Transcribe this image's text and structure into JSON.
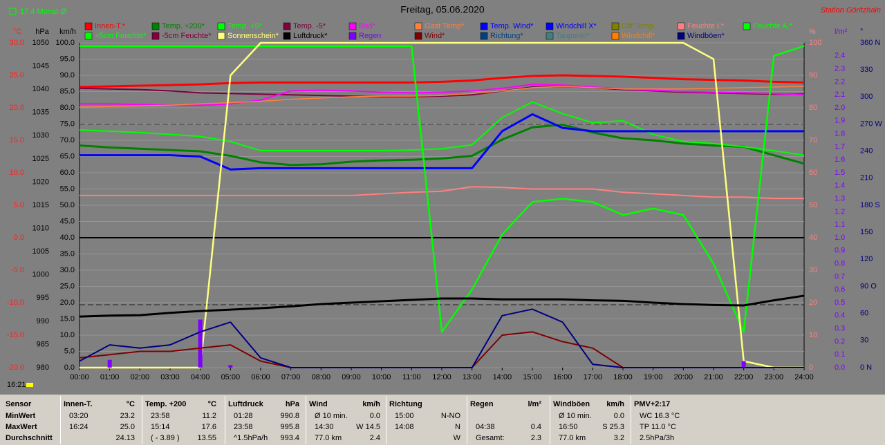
{
  "chart_data": {
    "type": "line",
    "title": "Freitag, 05.06.2020",
    "month_note": "17.4 Monat-Ø",
    "station": "Station Göritzhain",
    "time": "16:21",
    "categories": [
      "00:00",
      "01:00",
      "02:00",
      "03:00",
      "04:00",
      "05:00",
      "06:00",
      "07:00",
      "08:00",
      "09:00",
      "10:00",
      "11:00",
      "12:00",
      "13:00",
      "14:00",
      "15:00",
      "16:00",
      "17:00",
      "18:00",
      "19:00",
      "20:00",
      "21:00",
      "22:00",
      "23:00",
      "24:00"
    ],
    "grid": true,
    "axes": {
      "c": {
        "unit": "°C",
        "color": "#ff2020",
        "side": "left",
        "lim": [
          -20,
          30
        ],
        "ticks": [
          {
            "value": 30,
            "label": "30.0"
          },
          {
            "value": 25,
            "label": "25.0"
          },
          {
            "value": 20,
            "label": "20.0"
          },
          {
            "value": 15,
            "label": "15.0"
          },
          {
            "value": 10,
            "label": "10.0"
          },
          {
            "value": 5,
            "label": "5.0"
          },
          {
            "value": 0,
            "label": "0.0"
          },
          {
            "value": -5,
            "label": "-5.0"
          },
          {
            "value": -10,
            "label": "-10.0"
          },
          {
            "value": -15,
            "label": "-15.0"
          },
          {
            "value": -20,
            "label": "-20.0"
          }
        ]
      },
      "hpa": {
        "unit": "hPa",
        "color": "#000000",
        "side": "left",
        "lim": [
          980,
          1050
        ],
        "ticks": [
          1050,
          1045,
          1040,
          1035,
          1030,
          1025,
          1020,
          1015,
          1010,
          1005,
          1000,
          995,
          990,
          985,
          980
        ]
      },
      "kmh": {
        "unit": "km/h",
        "color": "#000000",
        "side": "left",
        "lim": [
          0,
          100
        ],
        "ticks": [
          {
            "value": 100,
            "label": "100.0"
          },
          {
            "value": 95,
            "label": "95.0"
          },
          {
            "value": 90,
            "label": "90.0"
          },
          {
            "value": 85,
            "label": "85.0"
          },
          {
            "value": 80,
            "label": "80.0"
          },
          {
            "value": 75,
            "label": "75.0"
          },
          {
            "value": 70,
            "label": "70.0"
          },
          {
            "value": 65,
            "label": "65.0"
          },
          {
            "value": 60,
            "label": "60.0"
          },
          {
            "value": 55,
            "label": "55.0"
          },
          {
            "value": 50,
            "label": "50.0"
          },
          {
            "value": 45,
            "label": "45.0"
          },
          {
            "value": 40,
            "label": "40.0"
          },
          {
            "value": 35,
            "label": "35.0"
          },
          {
            "value": 30,
            "label": "30.0"
          },
          {
            "value": 25,
            "label": "25.0"
          },
          {
            "value": 20,
            "label": "20.0"
          },
          {
            "value": 15,
            "label": "15.0"
          },
          {
            "value": 10,
            "label": "10.0"
          },
          {
            "value": 5,
            "label": "5.0"
          },
          {
            "value": 0,
            "label": "0.0"
          }
        ]
      },
      "pct": {
        "unit": "%",
        "color": "#ff8080",
        "side": "right",
        "lim": [
          0,
          100
        ],
        "ticks": [
          100,
          90,
          80,
          70,
          60,
          50,
          40,
          30,
          20,
          10,
          0
        ]
      },
      "rain": {
        "unit": "l/m²",
        "color": "#8000ff",
        "side": "right",
        "lim": [
          0,
          2.5
        ],
        "ticks": [
          {
            "value": 2.4,
            "label": "2.4"
          },
          {
            "value": 2.3,
            "label": "2.3"
          },
          {
            "value": 2.2,
            "label": "2.2"
          },
          {
            "value": 2.1,
            "label": "2.1"
          },
          {
            "value": 2,
            "label": "2.0"
          },
          {
            "value": 1.9,
            "label": "1.9"
          },
          {
            "value": 1.8,
            "label": "1.8"
          },
          {
            "value": 1.7,
            "label": "1.7"
          },
          {
            "value": 1.6,
            "label": "1.6"
          },
          {
            "value": 1.5,
            "label": "1.5"
          },
          {
            "value": 1.4,
            "label": "1.4"
          },
          {
            "value": 1.3,
            "label": "1.3"
          },
          {
            "value": 1.2,
            "label": "1.2"
          },
          {
            "value": 1.1,
            "label": "1.1"
          },
          {
            "value": 1,
            "label": "1.0"
          },
          {
            "value": 0.9,
            "label": "0.9"
          },
          {
            "value": 0.8,
            "label": "0.8"
          },
          {
            "value": 0.7,
            "label": "0.7"
          },
          {
            "value": 0.6,
            "label": "0.6"
          },
          {
            "value": 0.5,
            "label": "0.5"
          },
          {
            "value": 0.4,
            "label": "0.4"
          },
          {
            "value": 0.3,
            "label": "0.3"
          },
          {
            "value": 0.2,
            "label": "0.2"
          },
          {
            "value": 0.1,
            "label": "0.1"
          },
          {
            "value": 0,
            "label": "0.0"
          }
        ]
      },
      "deg": {
        "unit": "°",
        "color": "#000080",
        "side": "right",
        "lim": [
          0,
          360
        ],
        "ticks": [
          {
            "value": 360,
            "label": "360 N"
          },
          {
            "value": 330,
            "label": "330"
          },
          {
            "value": 300,
            "label": "300"
          },
          {
            "value": 270,
            "label": "270 W"
          },
          {
            "value": 240,
            "label": "240"
          },
          {
            "value": 210,
            "label": "210"
          },
          {
            "value": 180,
            "label": "180 S"
          },
          {
            "value": 150,
            "label": "150"
          },
          {
            "value": 120,
            "label": "120"
          },
          {
            "value": 90,
            "label": "90 O"
          },
          {
            "value": 60,
            "label": "60"
          },
          {
            "value": 30,
            "label": "30"
          },
          {
            "value": 0,
            "label": "0 N"
          }
        ]
      }
    },
    "series": [
      {
        "name": "Innen-T.*",
        "color": "#ff0000",
        "axis": "c",
        "width": 3,
        "values": [
          23.2,
          23.3,
          23.4,
          23.5,
          23.6,
          23.8,
          23.9,
          23.9,
          23.9,
          23.9,
          23.9,
          23.9,
          24.0,
          24.2,
          24.6,
          24.9,
          25.0,
          24.9,
          24.8,
          24.6,
          24.4,
          24.3,
          24.2,
          24.0,
          23.9
        ]
      },
      {
        "name": "Temp. +200*",
        "color": "#008000",
        "axis": "c",
        "width": 3,
        "values": [
          14.2,
          13.9,
          13.7,
          13.5,
          13.3,
          12.6,
          11.6,
          11.2,
          11.3,
          11.7,
          11.9,
          12.0,
          12.2,
          12.6,
          15.1,
          17.0,
          17.4,
          16.2,
          15.3,
          15.0,
          14.5,
          14.2,
          14.0,
          12.7,
          11.4
        ]
      },
      {
        "name": "Temp. +5*",
        "color": "#00ff00",
        "axis": "c",
        "width": 2,
        "values": [
          16.6,
          16.4,
          16.2,
          15.9,
          15.6,
          14.8,
          13.4,
          13.4,
          13.4,
          13.4,
          13.4,
          13.5,
          13.7,
          14.3,
          18.5,
          20.9,
          19.1,
          17.7,
          18.0,
          15.9,
          14.8,
          14.5,
          14.0,
          13.4,
          12.7
        ]
      },
      {
        "name": "Temp. -5*",
        "color": "#800040",
        "axis": "c",
        "width": 2,
        "values": [
          23.0,
          22.9,
          22.8,
          22.6,
          22.3,
          22.2,
          22.1,
          22.0,
          21.9,
          21.8,
          21.7,
          21.7,
          21.8,
          22.0,
          22.6,
          23.2,
          23.3,
          23.1,
          22.8,
          22.6,
          22.4,
          22.3,
          22.2,
          22.1,
          22.1
        ]
      },
      {
        "name": "Bad*",
        "color": "#ff00ff",
        "axis": "c",
        "width": 2,
        "values": [
          20.6,
          20.6,
          20.5,
          20.4,
          20.4,
          20.6,
          21.2,
          22.6,
          22.7,
          22.6,
          22.4,
          22.3,
          22.4,
          22.6,
          23.0,
          23.6,
          23.5,
          23.2,
          22.9,
          22.7,
          22.5,
          22.4,
          22.3,
          22.2,
          22.0
        ]
      },
      {
        "name": "Gast Temp*",
        "color": "#ff8040",
        "axis": "c",
        "width": 1.5,
        "values": [
          20.1,
          20.2,
          20.3,
          20.4,
          20.6,
          20.8,
          21.0,
          21.3,
          21.5,
          21.7,
          21.8,
          21.8,
          21.9,
          22.2,
          22.6,
          23.1,
          23.3,
          23.1,
          22.9,
          22.9,
          22.9,
          23.0,
          23.1,
          23.2,
          23.3
        ]
      },
      {
        "name": "Temp. Wind*",
        "color": "#0000ff"
      },
      {
        "name": "Windchill X*",
        "color": "#0000ff",
        "axis": "c",
        "width": 3,
        "values": [
          12.7,
          12.7,
          12.7,
          12.7,
          12.5,
          10.5,
          10.7,
          10.7,
          10.7,
          10.7,
          10.7,
          10.7,
          10.7,
          10.7,
          16.4,
          19.0,
          16.9,
          16.4,
          16.4,
          16.4,
          16.4,
          16.4,
          16.4,
          16.4,
          16.4
        ]
      },
      {
        "name": "Diff Temp.",
        "color": "#808000"
      },
      {
        "name": "Feuchte I.*",
        "color": "#ff8080",
        "axis": "pct",
        "width": 2,
        "values": [
          53,
          53,
          53,
          53,
          53,
          53,
          53,
          53,
          53,
          53,
          53.5,
          54,
          54.3,
          55.7,
          55.5,
          55,
          55,
          55,
          54,
          53.5,
          53,
          52.5,
          52.5,
          52.1,
          52.1
        ]
      },
      {
        "name": "Feuchte A.*",
        "color": "#00ff00",
        "axis": "pct",
        "width": 2.5,
        "values": [
          99,
          99,
          99,
          99,
          99,
          99,
          99,
          99,
          99,
          99,
          99,
          99,
          11,
          24,
          41,
          51,
          52,
          51,
          47,
          49,
          47,
          32,
          11,
          96,
          99
        ]
      },
      {
        "name": "+5cm Feuchte*",
        "color": "#00ff00"
      },
      {
        "name": "-5cm Feuchte*",
        "color": "#800040"
      },
      {
        "name": "Sonnenschein*",
        "color": "#ffff80",
        "axis": "pct",
        "width": 2.5,
        "values": [
          0,
          0,
          0,
          0,
          0,
          90,
          100,
          100,
          100,
          100,
          100,
          100,
          100,
          100,
          100,
          100,
          100,
          100,
          100,
          100,
          100,
          95,
          2,
          0,
          0
        ]
      },
      {
        "name": "Luftdruck*",
        "color": "#000000",
        "axis": "hpa",
        "width": 3,
        "values": [
          991.0,
          991.2,
          991.3,
          991.8,
          992.2,
          992.5,
          992.8,
          993.2,
          993.7,
          994.0,
          994.3,
          994.6,
          994.9,
          994.9,
          994.7,
          994.7,
          994.7,
          994.5,
          994.4,
          994.0,
          993.7,
          993.5,
          993.4,
          994.5,
          995.5
        ]
      },
      {
        "name": "Regen",
        "color": "#8000ff",
        "axis": "rain",
        "bars": true,
        "values": [
          0,
          0.06,
          0,
          0,
          0.37,
          0.02,
          0,
          0,
          0,
          0,
          0,
          0,
          0,
          0,
          0,
          0,
          0,
          0,
          0,
          0,
          0,
          0,
          0.05,
          0,
          0
        ]
      },
      {
        "name": "Wind*",
        "color": "#800000",
        "axis": "kmh",
        "width": 2,
        "values": [
          3,
          4,
          5,
          5,
          6,
          7,
          2,
          0,
          0,
          0,
          0,
          0,
          0,
          0,
          10,
          11,
          8,
          6,
          0,
          0,
          0,
          0,
          0,
          0,
          0
        ]
      },
      {
        "name": "Richtung*",
        "color": "#004080"
      },
      {
        "name": "Taupunkt*",
        "color": "#408080"
      },
      {
        "name": "Windchill*",
        "color": "#ff8000"
      },
      {
        "name": "Windböen*",
        "color": "#000080",
        "axis": "kmh",
        "width": 2,
        "values": [
          2,
          7,
          6,
          7,
          11,
          14,
          3,
          0,
          0,
          0,
          0,
          0,
          0,
          0,
          16,
          18,
          14,
          1,
          0,
          0,
          0,
          0,
          0,
          0,
          0
        ]
      }
    ]
  },
  "table": {
    "headers": [
      "Sensor",
      "MinWert",
      "MaxWert",
      "Durchschnitt"
    ],
    "groups": [
      {
        "title": "Innen-T.",
        "unit": "°C",
        "rows": [
          [
            "03:20",
            "23.2"
          ],
          [
            "16:24",
            "25.0"
          ],
          [
            "",
            "24.13"
          ]
        ]
      },
      {
        "title": "Temp. +200",
        "unit": "°C",
        "rows": [
          [
            "23:58",
            "11.2"
          ],
          [
            "15:14",
            "17.6"
          ],
          [
            "( - 3.89 )",
            "13.55"
          ]
        ]
      },
      {
        "title": "Luftdruck",
        "unit": "hPa",
        "rows": [
          [
            "01:28",
            "990.8"
          ],
          [
            "23:58",
            "995.8"
          ],
          [
            "^1.5hPa/h",
            "993.4"
          ]
        ]
      },
      {
        "title": "Wind",
        "unit": "km/h",
        "rows": [
          [
            "Ø 10 min.",
            "0.0"
          ],
          [
            "14:30",
            "W 14.5"
          ],
          [
            "77.0 km",
            "2.4"
          ]
        ]
      },
      {
        "title": "Richtung",
        "unit": "",
        "rows": [
          [
            "15:00",
            "N-NO"
          ],
          [
            "14:08",
            "N"
          ],
          [
            "",
            "W"
          ]
        ]
      },
      {
        "title": "Regen",
        "unit": "l/m²",
        "rows": [
          [
            "",
            ""
          ],
          [
            "04:38",
            "0.4"
          ],
          [
            "Gesamt:",
            "2.3"
          ]
        ]
      },
      {
        "title": "Windböen",
        "unit": "km/h",
        "rows": [
          [
            "Ø 10 min.",
            "0.0"
          ],
          [
            "16:50",
            "S 25.3"
          ],
          [
            "77.0 km",
            "3.2"
          ]
        ]
      },
      {
        "title": "PMV+2:17",
        "unit": "",
        "rows": [
          [
            "WC 16.3 °C",
            ""
          ],
          [
            "TP 11.0 °C",
            ""
          ],
          [
            "2.5hPa/3h",
            ""
          ]
        ]
      }
    ]
  }
}
